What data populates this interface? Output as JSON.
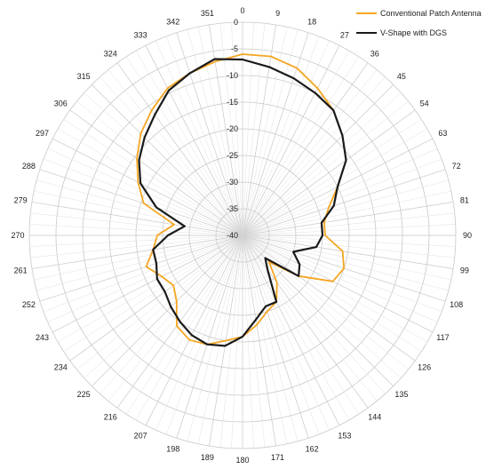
{
  "chart_data": {
    "type": "line",
    "subtype": "polar",
    "title": "",
    "radial_range": [
      -40,
      0
    ],
    "radial_ticks": [
      0,
      -5,
      -10,
      -15,
      -20,
      -25,
      -30,
      -35,
      -40
    ],
    "radial_tick_labels": [
      "0",
      "-5",
      "-10",
      "-15",
      "-20",
      "-25",
      "-30",
      "-35",
      "-40"
    ],
    "angle_ticks": [
      0,
      9,
      18,
      27,
      36,
      45,
      54,
      63,
      72,
      81,
      90,
      99,
      108,
      117,
      126,
      135,
      144,
      153,
      162,
      171,
      180,
      189,
      198,
      207,
      216,
      225,
      234,
      243,
      252,
      261,
      270,
      279,
      288,
      297,
      306,
      315,
      324,
      333,
      342,
      351
    ],
    "angle_tick_labels": [
      "0",
      "9",
      "18",
      "27",
      "36",
      "45",
      "54",
      "63",
      "72",
      "81",
      "90",
      "99",
      "108",
      "117",
      "126",
      "135",
      "144",
      "153",
      "162",
      "171",
      "180",
      "189",
      "198",
      "207",
      "216",
      "225",
      "234",
      "243",
      "252",
      "261",
      "270",
      "279",
      "288",
      "297",
      "306",
      "315",
      "324",
      "333",
      "342",
      "351"
    ],
    "grid": true,
    "legend_position": "top-right",
    "series": [
      {
        "name": "Conventional Patch Antenna",
        "color": "#f5a623",
        "angles": [
          0,
          9,
          18,
          27,
          36,
          45,
          54,
          63,
          72,
          81,
          90,
          99,
          108,
          117,
          126,
          135,
          144,
          153,
          162,
          171,
          180,
          189,
          198,
          207,
          216,
          225,
          234,
          243,
          252,
          261,
          270,
          279,
          288,
          297,
          306,
          315,
          324,
          333,
          342,
          351
        ],
        "values": [
          -6,
          -6,
          -7,
          -9,
          -11,
          -13.5,
          -16,
          -20,
          -23,
          -24.5,
          -24.5,
          -21,
          -20,
          -21,
          -27,
          -33,
          -29,
          -26,
          -25,
          -23,
          -21,
          -20,
          -18.5,
          -18,
          -19,
          -22.5,
          -24,
          -23,
          -21,
          -23,
          -24,
          -27,
          -20.5,
          -18,
          -15.5,
          -13,
          -11,
          -9,
          -8,
          -7
        ]
      },
      {
        "name": "V-Shape with DGS",
        "color": "#1a1a1a",
        "angles": [
          0,
          9,
          18,
          27,
          36,
          45,
          54,
          63,
          72,
          81,
          90,
          99,
          108,
          117,
          126,
          135,
          144,
          153,
          162,
          171,
          180,
          189,
          198,
          207,
          216,
          225,
          234,
          243,
          252,
          261,
          270,
          279,
          288,
          297,
          306,
          315,
          324,
          333,
          342,
          351
        ],
        "values": [
          -7,
          -8,
          -9,
          -10,
          -11,
          -13.5,
          -16,
          -20,
          -22,
          -25,
          -25,
          -26,
          -30,
          -28,
          -27,
          -34,
          -32,
          -26,
          -26,
          -24,
          -21,
          -19,
          -18.5,
          -19,
          -20,
          -21,
          -22,
          -22,
          -23,
          -23,
          -26,
          -29,
          -23,
          -18.5,
          -16,
          -14,
          -12,
          -9.5,
          -8,
          -6.5
        ]
      }
    ]
  }
}
